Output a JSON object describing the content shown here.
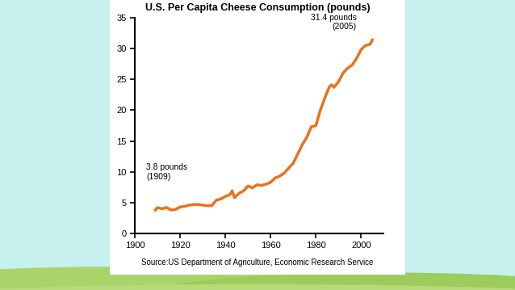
{
  "chart_data": {
    "type": "line",
    "title": "U.S. Per Capita Cheese Consumption (pounds)",
    "x": [
      1909,
      1910,
      1912,
      1914,
      1916,
      1918,
      1920,
      1922,
      1924,
      1926,
      1928,
      1930,
      1932,
      1934,
      1936,
      1938,
      1940,
      1942,
      1943,
      1944,
      1946,
      1948,
      1950,
      1952,
      1954,
      1956,
      1958,
      1960,
      1962,
      1964,
      1966,
      1968,
      1970,
      1972,
      1974,
      1976,
      1978,
      1980,
      1982,
      1984,
      1986,
      1987,
      1988,
      1990,
      1992,
      1994,
      1996,
      1998,
      2000,
      2002,
      2004,
      2005
    ],
    "values": [
      3.8,
      4.2,
      4.0,
      4.2,
      3.8,
      3.9,
      4.3,
      4.4,
      4.6,
      4.7,
      4.7,
      4.6,
      4.5,
      4.5,
      5.4,
      5.6,
      6.0,
      6.3,
      6.9,
      5.8,
      6.5,
      6.9,
      7.7,
      7.4,
      7.9,
      7.8,
      8.0,
      8.3,
      9.0,
      9.3,
      9.8,
      10.6,
      11.4,
      12.9,
      14.4,
      15.6,
      17.3,
      17.5,
      20.0,
      22.0,
      23.8,
      24.1,
      23.7,
      24.6,
      26.0,
      26.8,
      27.3,
      28.4,
      29.8,
      30.5,
      30.7,
      31.4
    ],
    "color": "#e8731e",
    "xlim": [
      1900,
      2010
    ],
    "xticks": [
      1900,
      1920,
      1940,
      1960,
      1980,
      2000
    ],
    "ylim": [
      0,
      35
    ],
    "yticks": [
      0,
      5,
      10,
      15,
      20,
      25,
      30,
      35
    ],
    "grid": false,
    "annotations": [
      "3.8 pounds\n(1909)",
      "31.4 pounds\n(2005)"
    ],
    "source": "Source:US Department of Agriculture, Economic Research Service"
  }
}
